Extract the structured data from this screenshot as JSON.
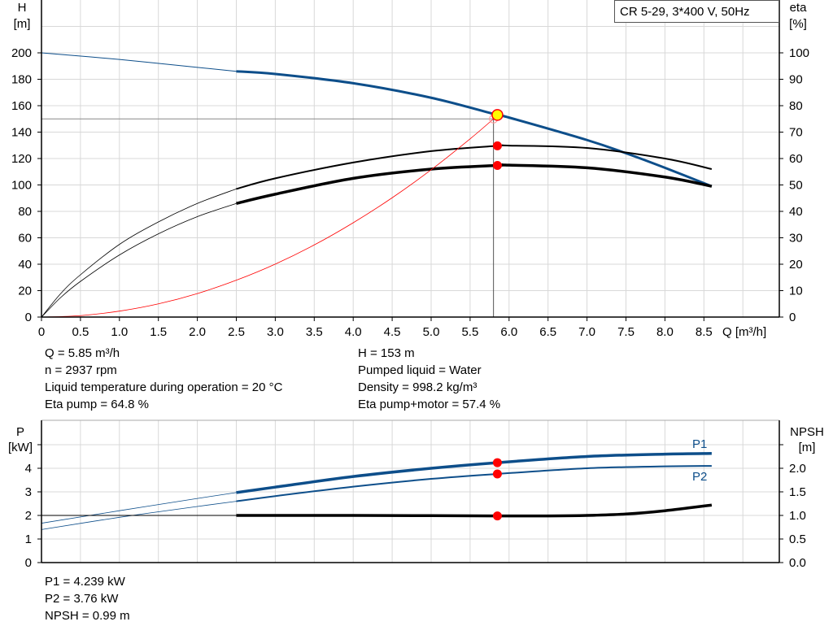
{
  "colors": {
    "head": "#0d4e8a",
    "efficiency": "#000000",
    "system": "#ff0000",
    "power": "#0d4e8a",
    "npsh": "#000000",
    "duty_point": "#ffff00",
    "marker": "#ff0000",
    "grid": "#d8d8d8"
  },
  "chart_data": [
    {
      "type": "line",
      "title": "CR 5-29, 3*400 V, 50Hz",
      "xlabel": "Q [m³/h]",
      "ylabel": "H",
      "ylabel_unit": "[m]",
      "y2label": "eta",
      "y2label_unit": "[%]",
      "xlim": [
        0,
        9.5
      ],
      "ylim": [
        0,
        240
      ],
      "y2lim": [
        0,
        120
      ],
      "grid": true,
      "x_ticks": [
        "0",
        "0.5",
        "1.0",
        "1.5",
        "2.0",
        "2.5",
        "3.0",
        "3.5",
        "4.0",
        "4.5",
        "5.0",
        "5.5",
        "6.0",
        "6.5",
        "7.0",
        "7.5",
        "8.0",
        "8.5"
      ],
      "y_ticks": [
        "0",
        "20",
        "40",
        "60",
        "80",
        "100",
        "120",
        "140",
        "160",
        "180",
        "200"
      ],
      "y2_ticks": [
        "0",
        "10",
        "20",
        "30",
        "40",
        "50",
        "60",
        "70",
        "80",
        "90",
        "100"
      ],
      "series": [
        {
          "key": "head",
          "axis": "left",
          "thin_until": 2.5,
          "x": [
            0,
            1,
            2,
            2.5,
            3,
            4,
            5,
            5.85,
            6,
            7,
            7.5,
            8,
            8.6
          ],
          "y": [
            200,
            195,
            189,
            186,
            184,
            177,
            166,
            153,
            151,
            134,
            124,
            113,
            99
          ]
        },
        {
          "key": "eta_pump",
          "axis": "right",
          "thin_until": 2.5,
          "x": [
            0,
            0.25,
            0.5,
            1,
            1.5,
            2,
            2.5,
            3,
            4,
            5,
            5.85,
            6,
            7,
            8,
            8.6
          ],
          "y": [
            0,
            9,
            16,
            27.5,
            36,
            43,
            48.5,
            52.5,
            58.5,
            62.8,
            64.8,
            64.9,
            64,
            60,
            56
          ]
        },
        {
          "key": "eta_pump_motor",
          "axis": "right",
          "thin_until": 2.5,
          "x": [
            0,
            0.25,
            0.5,
            1,
            1.5,
            2,
            2.5,
            3,
            4,
            5,
            5.85,
            6,
            7,
            8,
            8.6
          ],
          "y": [
            0,
            7.5,
            13.5,
            23.5,
            31.5,
            38,
            43,
            46.5,
            52.5,
            56,
            57.4,
            57.5,
            56.5,
            53,
            49.5
          ]
        },
        {
          "key": "system_curve",
          "axis": "left",
          "x": [
            0,
            0.5,
            1,
            1.5,
            2,
            2.5,
            3,
            3.5,
            4,
            4.5,
            5,
            5.5,
            5.8
          ],
          "y": [
            0,
            1.1,
            4.5,
            10,
            17.8,
            27.9,
            40.1,
            54.6,
            71.4,
            90.3,
            111.5,
            134.9,
            150
          ]
        }
      ],
      "duty_point": {
        "Q": 5.85,
        "H": 153
      },
      "requested_point": {
        "Q": 5.8,
        "H": 150
      },
      "markers": [
        {
          "Q": 5.85,
          "eta": 64.8
        },
        {
          "Q": 5.85,
          "eta": 57.4
        }
      ]
    },
    {
      "type": "line",
      "ylabel": "P",
      "ylabel_unit": "[kW]",
      "y2label": "NPSH",
      "y2label_unit": "[m]",
      "xlim": [
        0,
        9.5
      ],
      "ylim": [
        0,
        6
      ],
      "y2lim": [
        0,
        3
      ],
      "grid": true,
      "y_ticks": [
        "0",
        "1",
        "2",
        "3",
        "4"
      ],
      "y2_ticks": [
        "0.0",
        "0.5",
        "1.0",
        "1.5",
        "2.0"
      ],
      "series": [
        {
          "key": "P1",
          "name": "P1",
          "axis": "left",
          "thin_until": 2.5,
          "x": [
            0,
            1,
            2,
            2.5,
            3,
            4,
            5,
            5.85,
            7,
            8,
            8.6
          ],
          "y": [
            1.67,
            2.2,
            2.72,
            2.97,
            3.2,
            3.65,
            4.0,
            4.239,
            4.5,
            4.6,
            4.63
          ]
        },
        {
          "key": "P2",
          "name": "P2",
          "axis": "left",
          "thin_until": 2.5,
          "x": [
            0,
            1,
            2,
            2.5,
            3,
            4,
            5,
            5.85,
            7,
            8,
            8.6
          ],
          "y": [
            1.4,
            1.92,
            2.38,
            2.6,
            2.82,
            3.22,
            3.55,
            3.76,
            4.0,
            4.08,
            4.1
          ]
        },
        {
          "key": "NPSH",
          "axis": "right",
          "thin_until": 2.5,
          "x": [
            0,
            2.5,
            4,
            5,
            5.85,
            6.5,
            7,
            7.5,
            8,
            8.6
          ],
          "y": [
            1.0,
            1.0,
            1.0,
            0.995,
            0.99,
            0.99,
            1.0,
            1.03,
            1.1,
            1.22
          ]
        }
      ],
      "markers": [
        {
          "Q": 5.85,
          "P": 4.239
        },
        {
          "Q": 5.85,
          "P": 3.76
        },
        {
          "Q": 5.85,
          "NPSH": 0.99
        }
      ]
    }
  ],
  "info_top": {
    "left": [
      "Q = 5.85 m³/h",
      "n = 2937 rpm",
      "Liquid temperature during operation = 20 °C",
      "Eta pump = 64.8 %"
    ],
    "right": [
      "H = 153 m",
      "Pumped liquid = Water",
      "Density = 998.2 kg/m³",
      "Eta pump+motor = 57.4 %"
    ]
  },
  "info_bottom": [
    "P1 = 4.239 kW",
    "P2 = 3.76 kW",
    "NPSH = 0.99 m"
  ]
}
